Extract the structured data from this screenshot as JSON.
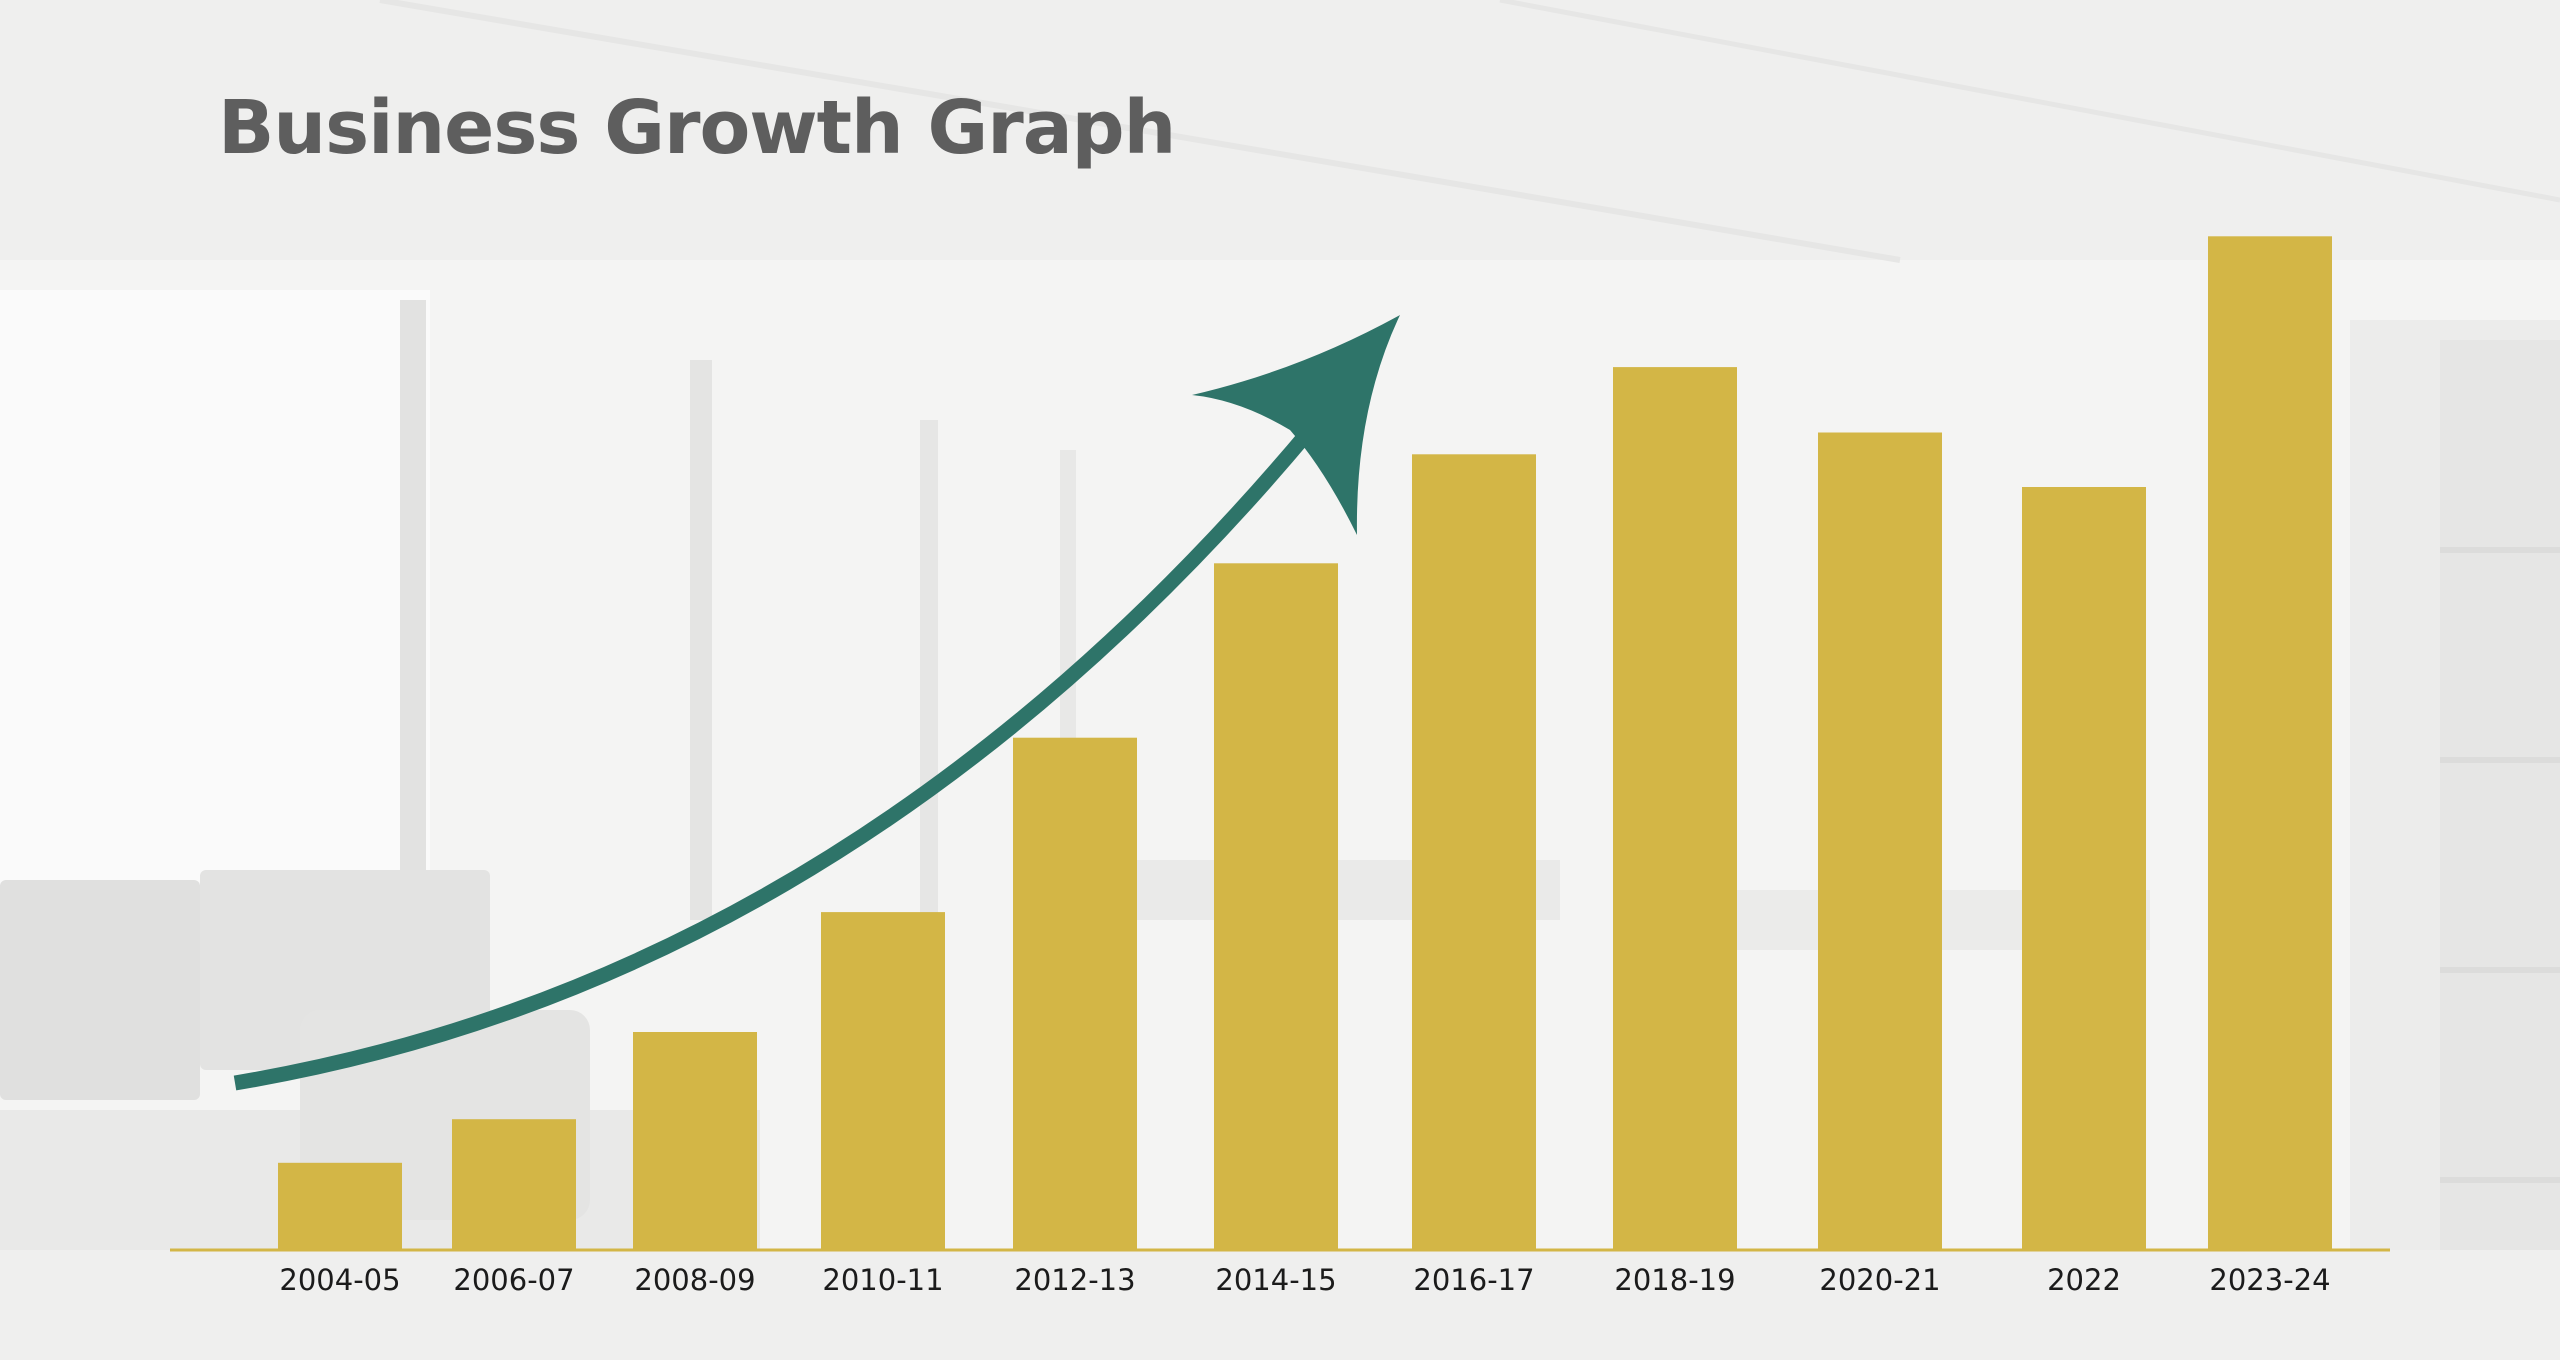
{
  "chart_data": {
    "type": "bar",
    "title": "Business Growth Graph",
    "xlabel": "",
    "ylabel": "",
    "categories": [
      "2004-05",
      "2006-07",
      "2008-09",
      "2010-11",
      "2012-13",
      "2014-15",
      "2016-17",
      "2018-19",
      "2020-21",
      "2022",
      "2023-24"
    ],
    "values": [
      8,
      12,
      20,
      31,
      47,
      63,
      73,
      81,
      75,
      70,
      93
    ],
    "ylim": [
      0,
      100
    ],
    "grid": false,
    "legend": "none",
    "colors": {
      "bar": "#d3b646",
      "axis": "#d3b646",
      "arrow": "#2e7469",
      "title": "#5e5e5e",
      "tick_label": "#1b1b1b"
    },
    "annotations": [
      {
        "type": "trend-arrow",
        "direction": "up-right"
      }
    ]
  }
}
